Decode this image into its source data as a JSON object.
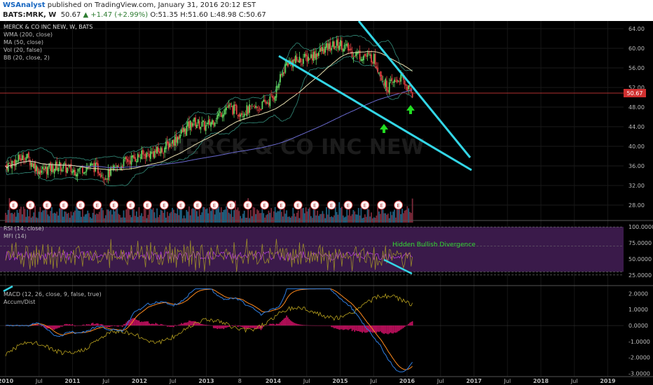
{
  "header": {
    "author": "WSAnalyst",
    "published": "published on TradingView.com, January 31, 2016 20:12 EST",
    "symbol": "BATS:MRK, W",
    "last": "50.67",
    "change": "+1.47 (+2.99%)",
    "open": "O:51.35",
    "high": "H:51.60",
    "low": "L:48.98",
    "close": "C:50.67"
  },
  "price_pane": {
    "legend": [
      "MERCK & CO INC NEW, W, BATS",
      "WMA (200, close)",
      "MA (50, close)",
      "Vol (20, false)",
      "BB (20, close, 2)"
    ],
    "watermark": "MERCK & CO INC NEW",
    "current_price": "50.67",
    "earnings_marker": "E",
    "annotation_arrows": 2
  },
  "rsi_pane": {
    "legend": [
      "RSI (14, close)",
      "MFI (14)"
    ],
    "annotation": "Hidden Bullish Divergence"
  },
  "macd_pane": {
    "legend": [
      "MACD (12, 26, close, 9, false, true)",
      "Accum/Dist"
    ]
  },
  "x_axis_labels": [
    "2010",
    "Jul",
    "2011",
    "Jul",
    "2012",
    "Jul",
    "2013",
    "8",
    "2014",
    "Jul",
    "2015",
    "Jul",
    "2016",
    "Jul",
    "2017",
    "Jul",
    "2018",
    "Jul",
    "2019"
  ],
  "colors": {
    "background": "#000000",
    "up_candle": "#5fd35f",
    "down_candle": "#e04040",
    "trendline": "#33d6e6",
    "rsi_band": "#3a1a4a",
    "macd_line": "#2e7de0",
    "signal_line": "#ff8a1e",
    "accum_dist": "#b9a21e",
    "histogram": "#c41060",
    "green_arrow": "#22dd22"
  },
  "chart_data": [
    {
      "type": "candlestick",
      "title": "MERCK & CO INC NEW, W, BATS",
      "y_ticks": [
        "64.00",
        "60.00",
        "56.00",
        "52.00",
        "48.00",
        "44.00",
        "40.00",
        "36.00",
        "32.00",
        "28.00"
      ],
      "ylim": [
        26,
        65
      ],
      "x_range": [
        "2010",
        "2019"
      ],
      "approx_close_path": [
        [
          2010.0,
          36
        ],
        [
          2010.3,
          38
        ],
        [
          2010.5,
          35
        ],
        [
          2010.8,
          36
        ],
        [
          2011.0,
          35
        ],
        [
          2011.3,
          36
        ],
        [
          2011.5,
          34
        ],
        [
          2011.8,
          37
        ],
        [
          2012.0,
          38
        ],
        [
          2012.3,
          39
        ],
        [
          2012.5,
          41
        ],
        [
          2012.8,
          45
        ],
        [
          2013.0,
          44
        ],
        [
          2013.3,
          48
        ],
        [
          2013.5,
          47
        ],
        [
          2013.8,
          48
        ],
        [
          2014.0,
          50
        ],
        [
          2014.2,
          57
        ],
        [
          2014.5,
          58
        ],
        [
          2014.8,
          60
        ],
        [
          2015.0,
          61
        ],
        [
          2015.2,
          59
        ],
        [
          2015.5,
          58
        ],
        [
          2015.7,
          52
        ],
        [
          2015.9,
          54
        ],
        [
          2016.08,
          50.67
        ]
      ],
      "annotations": [
        "falling wedge upper trendline",
        "falling wedge lower trendline"
      ]
    },
    {
      "type": "line",
      "title": "RSI (14, close)",
      "y_ticks": [
        "100.0000",
        "75.0000",
        "50.0000",
        "25.0000"
      ],
      "ylim": [
        15,
        110
      ],
      "bands": [
        30,
        70
      ],
      "series": [
        {
          "name": "RSI (14, close)"
        },
        {
          "name": "MFI (14)"
        }
      ],
      "annotations": [
        "Hidden Bullish Divergence"
      ]
    },
    {
      "type": "line",
      "title": "MACD (12, 26, close, 9, false, true)",
      "y_ticks": [
        "2.0000",
        "1.0000",
        "0.0000",
        "-1.0000",
        "-2.0000",
        "-3.0000"
      ],
      "ylim": [
        -3.2,
        2.5
      ],
      "series": [
        {
          "name": "MACD"
        },
        {
          "name": "Signal"
        },
        {
          "name": "Histogram"
        },
        {
          "name": "Accum/Dist"
        }
      ]
    }
  ]
}
